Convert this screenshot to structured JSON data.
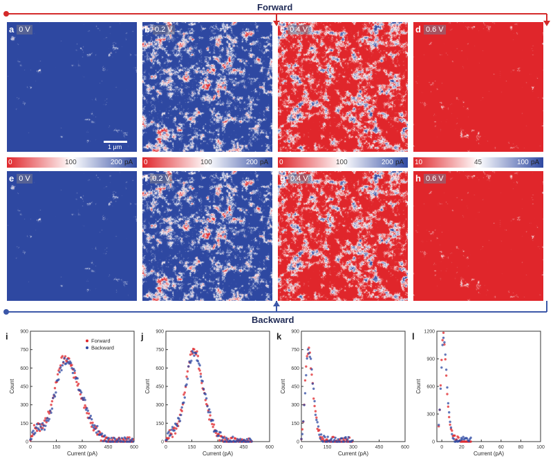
{
  "headings": {
    "forward": "Forward",
    "backward": "Backward"
  },
  "colors": {
    "red": "#e0262b",
    "blue": "#2e48a1",
    "white": "#ffffff",
    "arrow_red": "#d42a2a",
    "arrow_blue": "#3b57a8"
  },
  "maps": [
    {
      "letter": "a",
      "voltage": "0 V",
      "level": 0.08
    },
    {
      "letter": "b",
      "voltage": "0.2 V",
      "level": 0.35
    },
    {
      "letter": "c",
      "voltage": "0.4 V",
      "level": 0.72
    },
    {
      "letter": "d",
      "voltage": "0.6 V",
      "level": 0.97
    },
    {
      "letter": "e",
      "voltage": "0 V",
      "level": 0.08
    },
    {
      "letter": "f",
      "voltage": "0.2 V",
      "level": 0.35
    },
    {
      "letter": "g",
      "voltage": "0.4 V",
      "level": 0.72
    },
    {
      "letter": "h",
      "voltage": "0.6 V",
      "level": 0.96
    }
  ],
  "scale_bar": "1 μm",
  "colorbars": [
    {
      "ticks": [
        "0",
        "100",
        "200"
      ],
      "unit": "pA"
    },
    {
      "ticks": [
        "0",
        "100",
        "200"
      ],
      "unit": "pA"
    },
    {
      "ticks": [
        "0",
        "100",
        "200"
      ],
      "unit": "pA"
    },
    {
      "ticks": [
        "10",
        "45",
        "100"
      ],
      "unit": "pA"
    }
  ],
  "legend": {
    "forward": "Forward",
    "backward": "Backward"
  },
  "chart_data": [
    {
      "type": "scatter",
      "panel": "i",
      "xlabel": "Current (pA)",
      "ylabel": "Count",
      "xlim": [
        0,
        600
      ],
      "ylim": [
        0,
        800
      ],
      "xticks": [
        "0",
        "150",
        "300",
        "450",
        "600"
      ],
      "yticks": [
        "0",
        "150",
        "300",
        "450",
        "600",
        "750",
        "900"
      ],
      "series": [
        {
          "name": "Forward",
          "color": "#e0262b",
          "x": [
            0,
            20,
            40,
            60,
            80,
            100,
            120,
            140,
            160,
            180,
            200,
            220,
            240,
            260,
            280,
            300,
            320,
            340,
            360,
            380,
            400,
            420,
            440,
            460,
            480,
            500,
            520,
            540,
            560,
            580,
            600
          ],
          "y": [
            10,
            100,
            120,
            110,
            140,
            200,
            290,
            420,
            560,
            650,
            690,
            670,
            600,
            520,
            430,
            350,
            270,
            200,
            140,
            90,
            55,
            30,
            18,
            10,
            6,
            4,
            2,
            1,
            1,
            0,
            0
          ]
        },
        {
          "name": "Backward",
          "color": "#2e48a1",
          "x": [
            0,
            20,
            40,
            60,
            80,
            100,
            120,
            140,
            160,
            180,
            200,
            220,
            240,
            260,
            280,
            300,
            320,
            340,
            360,
            380,
            400,
            420,
            440,
            460,
            480,
            500,
            520,
            540,
            560,
            580,
            600
          ],
          "y": [
            10,
            90,
            115,
            105,
            125,
            180,
            260,
            380,
            510,
            610,
            660,
            650,
            600,
            530,
            450,
            370,
            290,
            220,
            160,
            105,
            65,
            38,
            22,
            12,
            7,
            4,
            2,
            1,
            1,
            0,
            0
          ]
        }
      ]
    },
    {
      "type": "scatter",
      "panel": "j",
      "xlabel": "Current (pA)",
      "ylabel": "Count",
      "xlim": [
        0,
        600
      ],
      "ylim": [
        0,
        800
      ],
      "xticks": [
        "0",
        "150",
        "300",
        "450",
        "600"
      ],
      "yticks": [
        "0",
        "150",
        "300",
        "450",
        "600",
        "750",
        "900"
      ],
      "series": [
        {
          "name": "Forward",
          "color": "#e0262b",
          "x": [
            0,
            20,
            40,
            60,
            80,
            100,
            120,
            140,
            160,
            180,
            200,
            220,
            240,
            260,
            280,
            300,
            320,
            340,
            360,
            380,
            400,
            420,
            440,
            460,
            480,
            500
          ],
          "y": [
            5,
            60,
            70,
            100,
            180,
            320,
            520,
            700,
            760,
            700,
            560,
            400,
            270,
            170,
            100,
            55,
            30,
            15,
            8,
            4,
            2,
            1,
            1,
            0,
            0,
            0
          ]
        },
        {
          "name": "Backward",
          "color": "#2e48a1",
          "x": [
            0,
            20,
            40,
            60,
            80,
            100,
            120,
            140,
            160,
            180,
            200,
            220,
            240,
            260,
            280,
            300,
            320,
            340,
            360,
            380,
            400,
            420,
            440,
            460,
            480,
            500
          ],
          "y": [
            5,
            80,
            90,
            120,
            190,
            310,
            490,
            660,
            730,
            690,
            570,
            420,
            290,
            185,
            110,
            62,
            34,
            17,
            9,
            4,
            2,
            1,
            1,
            0,
            0,
            0
          ]
        }
      ]
    },
    {
      "type": "scatter",
      "panel": "k",
      "xlabel": "Current (pA)",
      "ylabel": "Count",
      "xlim": [
        0,
        600
      ],
      "ylim": [
        0,
        800
      ],
      "xticks": [
        "0",
        "150",
        "300",
        "450",
        "600"
      ],
      "yticks": [
        "0",
        "150",
        "300",
        "450",
        "600",
        "750",
        "900"
      ],
      "series": [
        {
          "name": "Forward",
          "color": "#e0262b",
          "x": [
            0,
            10,
            20,
            30,
            40,
            50,
            60,
            70,
            80,
            90,
            100,
            110,
            120,
            130,
            140,
            150,
            160,
            180,
            200,
            250,
            300
          ],
          "y": [
            20,
            150,
            420,
            680,
            760,
            690,
            540,
            380,
            240,
            140,
            80,
            45,
            25,
            14,
            8,
            5,
            3,
            2,
            1,
            0,
            0
          ]
        },
        {
          "name": "Backward",
          "color": "#2e48a1",
          "x": [
            0,
            10,
            20,
            30,
            40,
            50,
            60,
            70,
            80,
            90,
            100,
            110,
            120,
            130,
            140,
            150,
            160,
            180,
            200,
            250,
            300
          ],
          "y": [
            15,
            120,
            380,
            640,
            740,
            700,
            570,
            410,
            270,
            165,
            95,
            55,
            30,
            17,
            10,
            6,
            4,
            2,
            1,
            0,
            0
          ]
        }
      ]
    },
    {
      "type": "scatter",
      "panel": "l",
      "xlabel": "Current (pA)",
      "ylabel": "Count",
      "xlim": [
        -5,
        100
      ],
      "ylim": [
        0,
        1300
      ],
      "xticks": [
        "0",
        "20",
        "40",
        "60",
        "80",
        "100"
      ],
      "yticks": [
        "0",
        "300",
        "600",
        "900",
        "1200"
      ],
      "series": [
        {
          "name": "Forward",
          "color": "#e0262b",
          "x": [
            -4,
            -2,
            0,
            1,
            2,
            3,
            4,
            5,
            6,
            7,
            8,
            9,
            10,
            12,
            14,
            16,
            18,
            20,
            25,
            30
          ],
          "y": [
            50,
            400,
            1000,
            1200,
            1150,
            1000,
            800,
            600,
            430,
            300,
            200,
            130,
            85,
            40,
            20,
            10,
            5,
            3,
            1,
            0
          ]
        },
        {
          "name": "Backward",
          "color": "#2e48a1",
          "x": [
            -4,
            -2,
            0,
            1,
            2,
            3,
            4,
            5,
            6,
            7,
            8,
            9,
            10,
            12,
            14,
            16,
            18,
            20,
            25,
            30
          ],
          "y": [
            40,
            350,
            900,
            1150,
            1180,
            1080,
            900,
            700,
            520,
            380,
            260,
            175,
            115,
            55,
            28,
            14,
            7,
            4,
            1,
            0
          ]
        }
      ]
    }
  ]
}
